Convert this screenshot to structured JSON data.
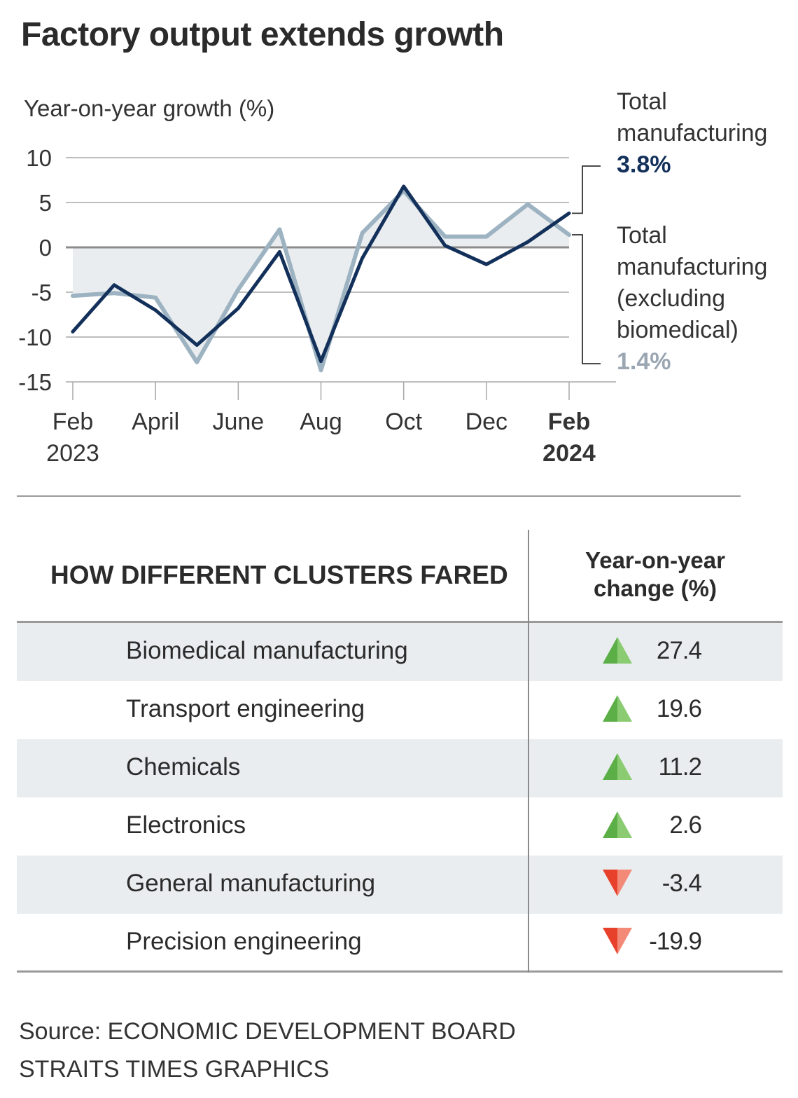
{
  "title": "Factory output extends growth",
  "chart_data": {
    "type": "line",
    "title": "Factory output extends growth",
    "ylabel": "Year-on-year growth (%)",
    "xlabel": "",
    "ylim": [
      -15,
      10
    ],
    "yticks": [
      10,
      5,
      0,
      -5,
      -10,
      -15
    ],
    "ytick_labels": [
      "10",
      "5",
      "0",
      "-5",
      "-10",
      "-15"
    ],
    "grid": true,
    "x": [
      "Feb 2023",
      "Mar 2023",
      "Apr 2023",
      "May 2023",
      "Jun 2023",
      "Jul 2023",
      "Aug 2023",
      "Sep 2023",
      "Oct 2023",
      "Nov 2023",
      "Dec 2023",
      "Jan 2024",
      "Feb 2024"
    ],
    "xtick_labels": [
      {
        "index": 0,
        "line1": "Feb",
        "line2": "2023",
        "bold": false
      },
      {
        "index": 2,
        "line1": "April",
        "line2": "",
        "bold": false
      },
      {
        "index": 4,
        "line1": "June",
        "line2": "",
        "bold": false
      },
      {
        "index": 6,
        "line1": "Aug",
        "line2": "",
        "bold": false
      },
      {
        "index": 8,
        "line1": "Oct",
        "line2": "",
        "bold": false
      },
      {
        "index": 10,
        "line1": "Dec",
        "line2": "",
        "bold": false
      },
      {
        "index": 12,
        "line1": "Feb",
        "line2": "2024",
        "bold": true
      }
    ],
    "series": [
      {
        "name": "Total manufacturing (excluding biomedical)",
        "color": "#9db3c2",
        "fill": "#e9edef",
        "values": [
          -5.4,
          -5.1,
          -5.6,
          -12.8,
          -4.7,
          2.0,
          -13.7,
          1.6,
          6.3,
          1.2,
          1.2,
          4.8,
          1.4
        ]
      },
      {
        "name": "Total manufacturing",
        "color": "#13305a",
        "values": [
          -9.4,
          -4.2,
          -7.0,
          -10.9,
          -6.8,
          -0.5,
          -12.7,
          -1.2,
          6.8,
          0.2,
          -1.9,
          0.6,
          3.8
        ]
      }
    ],
    "annotations": [
      {
        "label_line1": "Total",
        "label_line2": "manufacturing",
        "value": "3.8%",
        "color": "#13305a"
      },
      {
        "label_line1": "Total",
        "label_line2": "manufacturing",
        "label_line3": "(excluding",
        "label_line4": "biomedical)",
        "value": "1.4%",
        "color": "#9aa6b2"
      }
    ]
  },
  "table": {
    "header_left": "HOW DIFFERENT CLUSTERS FARED",
    "header_right_line1": "Year-on-year",
    "header_right_line2": "change (%)",
    "rows": [
      {
        "name": "Biomedical manufacturing",
        "value": "27.4",
        "direction": "up"
      },
      {
        "name": "Transport engineering",
        "value": "19.6",
        "direction": "up"
      },
      {
        "name": "Chemicals",
        "value": "11.2",
        "direction": "up"
      },
      {
        "name": "Electronics",
        "value": "2.6",
        "direction": "up"
      },
      {
        "name": "General manufacturing",
        "value": "-3.4",
        "direction": "down"
      },
      {
        "name": "Precision engineering",
        "value": "-19.9",
        "direction": "down"
      }
    ],
    "colors": {
      "up_dark": "#5cae47",
      "up_light": "#8bcc73",
      "down_dark": "#e8412b",
      "down_light": "#f28a77",
      "row_shade": "#e9edef"
    }
  },
  "footer": {
    "source": "Source: ECONOMIC DEVELOPMENT BOARD",
    "credit": "STRAITS TIMES GRAPHICS"
  }
}
